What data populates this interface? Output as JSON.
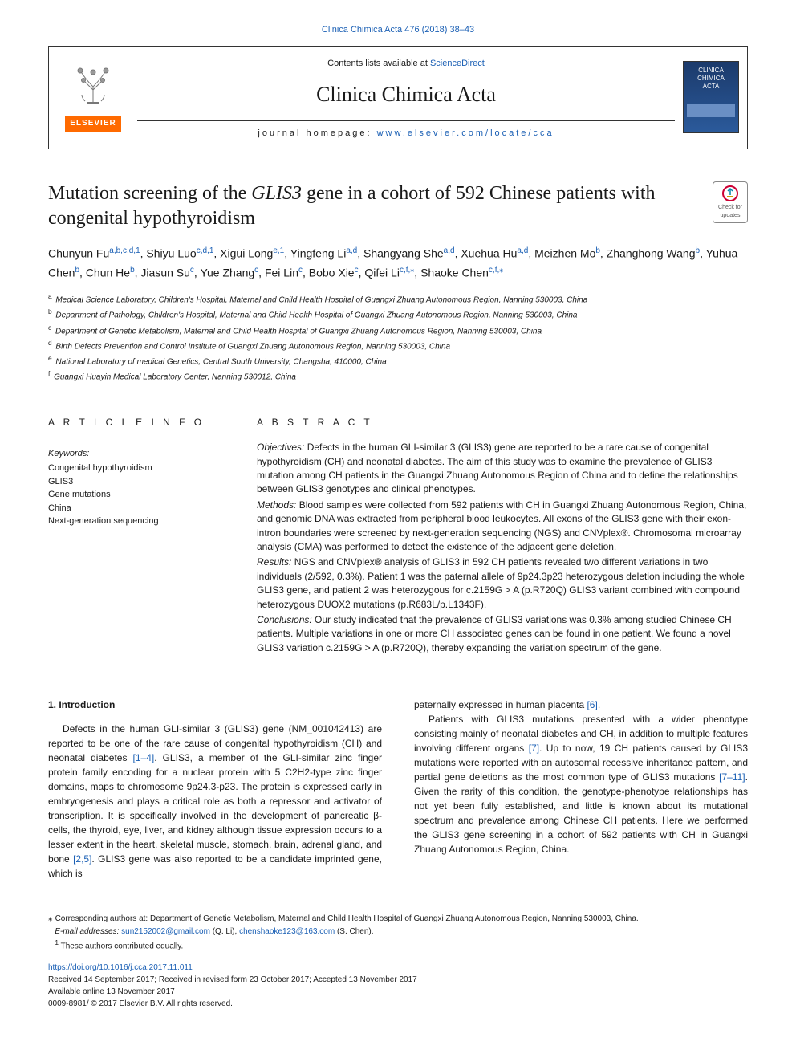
{
  "top_citation_link": "Clinica Chimica Acta 476 (2018) 38–43",
  "header": {
    "contents_prefix": "Contents lists available at ",
    "contents_link_text": "ScienceDirect",
    "journal_title": "Clinica Chimica Acta",
    "homepage_prefix": "journal homepage: ",
    "homepage_url": "www.elsevier.com/locate/cca",
    "publisher_wordmark": "ELSEVIER",
    "cover_text_line1": "CLINICA",
    "cover_text_line2": "CHIMICA",
    "cover_text_line3": "ACTA"
  },
  "article": {
    "title_prefix": "Mutation screening of the ",
    "title_gene": "GLIS3",
    "title_suffix": " gene in a cohort of 592 Chinese patients with congenital hypothyroidism",
    "updates_badge_text": "Check for updates"
  },
  "authors_html_parts": [
    {
      "name": "Chunyun Fu",
      "sup": "a,b,c,d,1"
    },
    {
      "name": "Shiyu Luo",
      "sup": "c,d,1"
    },
    {
      "name": "Xigui Long",
      "sup": "e,1"
    },
    {
      "name": "Yingfeng Li",
      "sup": "a,d"
    },
    {
      "name": "Shangyang She",
      "sup": "a,d"
    },
    {
      "name": "Xuehua Hu",
      "sup": "a,d"
    },
    {
      "name": "Meizhen Mo",
      "sup": "b"
    },
    {
      "name": "Zhanghong Wang",
      "sup": "b"
    },
    {
      "name": "Yuhua Chen",
      "sup": "b"
    },
    {
      "name": "Chun He",
      "sup": "b"
    },
    {
      "name": "Jiasun Su",
      "sup": "c"
    },
    {
      "name": "Yue Zhang",
      "sup": "c"
    },
    {
      "name": "Fei Lin",
      "sup": "c"
    },
    {
      "name": "Bobo Xie",
      "sup": "c"
    },
    {
      "name": "Qifei Li",
      "sup": "c,f,⁎"
    },
    {
      "name": "Shaoke Chen",
      "sup": "c,f,⁎"
    }
  ],
  "affiliations": [
    {
      "key": "a",
      "text": "Medical Science Laboratory, Children's Hospital, Maternal and Child Health Hospital of Guangxi Zhuang Autonomous Region, Nanning 530003, China"
    },
    {
      "key": "b",
      "text": "Department of Pathology, Children's Hospital, Maternal and Child Health Hospital of Guangxi Zhuang Autonomous Region, Nanning 530003, China"
    },
    {
      "key": "c",
      "text": "Department of Genetic Metabolism, Maternal and Child Health Hospital of Guangxi Zhuang Autonomous Region, Nanning 530003, China"
    },
    {
      "key": "d",
      "text": "Birth Defects Prevention and Control Institute of Guangxi Zhuang Autonomous Region, Nanning 530003, China"
    },
    {
      "key": "e",
      "text": "National Laboratory of medical Genetics, Central South University, Changsha, 410000, China"
    },
    {
      "key": "f",
      "text": "Guangxi Huayin Medical Laboratory Center, Nanning 530012, China"
    }
  ],
  "article_info": {
    "section_label": "A R T I C L E   I N F O",
    "keywords_label": "Keywords:",
    "keywords": [
      "Congenital hypothyroidism",
      "GLIS3",
      "Gene mutations",
      "China",
      "Next-generation sequencing"
    ]
  },
  "abstract": {
    "section_label": "A B S T R A C T",
    "objectives_label": "Objectives:",
    "objectives_text": " Defects in the human GLI-similar 3 (GLIS3) gene are reported to be a rare cause of congenital hypothyroidism (CH) and neonatal diabetes. The aim of this study was to examine the prevalence of GLIS3 mutation among CH patients in the Guangxi Zhuang Autonomous Region of China and to define the relationships between GLIS3 genotypes and clinical phenotypes.",
    "methods_label": "Methods:",
    "methods_text": " Blood samples were collected from 592 patients with CH in Guangxi Zhuang Autonomous Region, China, and genomic DNA was extracted from peripheral blood leukocytes. All exons of the GLIS3 gene with their exon-intron boundaries were screened by next-generation sequencing (NGS) and CNVplex®. Chromosomal microarray analysis (CMA) was performed to detect the existence of the adjacent gene deletion.",
    "results_label": "Results:",
    "results_text": " NGS and CNVplex® analysis of GLIS3 in 592 CH patients revealed two different variations in two individuals (2/592, 0.3%). Patient 1 was the paternal allele of 9p24.3p23 heterozygous deletion including the whole GLIS3 gene, and patient 2 was heterozygous for c.2159G > A (p.R720Q) GLIS3 variant combined with compound heterozygous DUOX2 mutations (p.R683L/p.L1343F).",
    "conclusions_label": "Conclusions:",
    "conclusions_text": " Our study indicated that the prevalence of GLIS3 variations was 0.3% among studied Chinese CH patients. Multiple variations in one or more CH associated genes can be found in one patient. We found a novel GLIS3 variation c.2159G > A (p.R720Q), thereby expanding the variation spectrum of the gene."
  },
  "body": {
    "intro_head": "1. Introduction",
    "col1_p1": "Defects in the human GLI-similar 3 (GLIS3) gene (NM_001042413) are reported to be one of the rare cause of congenital hypothyroidism (CH) and neonatal diabetes [1–4]. GLIS3, a member of the GLI-similar zinc finger protein family encoding for a nuclear protein with 5 C2H2-type zinc finger domains, maps to chromosome 9p24.3-p23. The protein is expressed early in embryogenesis and plays a critical role as both a repressor and activator of transcription. It is specifically involved in the development of pancreatic β-cells, the thyroid, eye, liver, and kidney although tissue expression occurs to a lesser extent in the heart, skeletal muscle, stomach, brain, adrenal gland, and bone [2,5]. GLIS3 gene was also reported to be a candidate imprinted gene, which is",
    "col2_p0": "paternally expressed in human placenta [6].",
    "col2_p1": "Patients with GLIS3 mutations presented with a wider phenotype consisting mainly of neonatal diabetes and CH, in addition to multiple features involving different organs [7]. Up to now, 19 CH patients caused by GLIS3 mutations were reported with an autosomal recessive inheritance pattern, and partial gene deletions as the most common type of GLIS3 mutations [7–11]. Given the rarity of this condition, the genotype-phenotype relationships has not yet been fully established, and little is known about its mutational spectrum and prevalence among Chinese CH patients. Here we performed the GLIS3 gene screening in a cohort of 592 patients with CH in Guangxi Zhuang Autonomous Region, China."
  },
  "footnotes": {
    "corr_text": "Corresponding authors at: Department of Genetic Metabolism, Maternal and Child Health Hospital of Guangxi Zhuang Autonomous Region, Nanning 530003, China.",
    "email_label": "E-mail addresses: ",
    "email1": "sun2152002@gmail.com",
    "email1_who": " (Q. Li), ",
    "email2": "chenshaoke123@163.com",
    "email2_who": " (S. Chen).",
    "equal": "These authors contributed equally."
  },
  "doi_block": {
    "doi_link": "https://doi.org/10.1016/j.cca.2017.11.011",
    "received": "Received 14 September 2017; Received in revised form 23 October 2017; Accepted 13 November 2017",
    "available": "Available online 13 November 2017",
    "copyright": "0009-8981/ © 2017 Elsevier B.V. All rights reserved."
  },
  "refs": {
    "r1_4": "[1–4]",
    "r2_5": "[2,5]",
    "r6": "[6]",
    "r7": "[7]",
    "r7_11": "[7–11]"
  }
}
